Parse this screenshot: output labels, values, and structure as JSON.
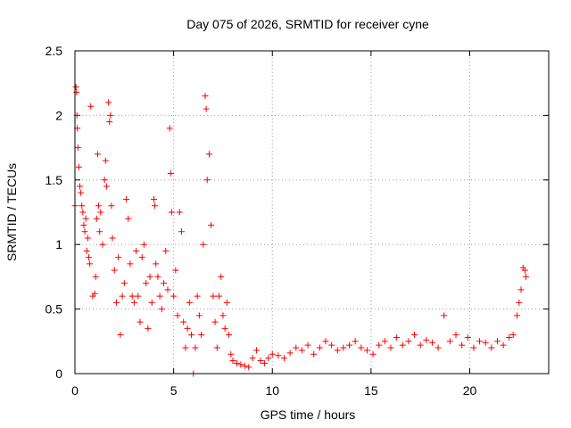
{
  "chart_data": {
    "type": "scatter",
    "title": "Day 075 of 2026, SRMTID for receiver cyne",
    "xlabel": "GPS time / hours",
    "ylabel": "SRMTID / TECUs",
    "xlim": [
      0,
      24
    ],
    "ylim": [
      0,
      2.5
    ],
    "x_ticks": [
      0,
      5,
      10,
      15,
      20
    ],
    "y_ticks": [
      0,
      0.5,
      1,
      1.5,
      2,
      2.5
    ],
    "x_tick_labels": [
      "0",
      "5",
      "10",
      "15",
      "20"
    ],
    "y_tick_labels": [
      "0",
      "0.5",
      "1",
      "1.5",
      "2",
      "2.5"
    ],
    "grid": true,
    "marker": "+",
    "series": [
      {
        "name": "SRMTID",
        "color": "#ff0000",
        "x": [
          0.0,
          0.05,
          0.08,
          0.1,
          0.12,
          0.15,
          0.2,
          0.25,
          0.3,
          0.35,
          0.4,
          0.45,
          0.5,
          0.55,
          0.6,
          0.65,
          0.7,
          0.75,
          0.8,
          0.9,
          1.0,
          1.05,
          1.1,
          1.15,
          1.2,
          1.25,
          1.3,
          1.4,
          1.5,
          1.55,
          1.6,
          1.7,
          1.75,
          1.8,
          1.85,
          1.9,
          2.0,
          2.1,
          2.2,
          2.3,
          2.4,
          2.5,
          2.6,
          2.7,
          2.8,
          2.9,
          3.0,
          3.1,
          3.2,
          3.3,
          3.4,
          3.5,
          3.6,
          3.7,
          3.8,
          3.9,
          4.0,
          4.05,
          4.1,
          4.2,
          4.3,
          4.4,
          4.5,
          4.6,
          4.7,
          4.8,
          4.85,
          4.9,
          5.0,
          5.1,
          5.2,
          5.3,
          5.4,
          5.5,
          5.6,
          5.7,
          5.8,
          5.9,
          6.0,
          6.1,
          6.2,
          6.3,
          6.4,
          6.5,
          6.6,
          6.65,
          6.7,
          6.8,
          6.9,
          7.0,
          7.1,
          7.2,
          7.3,
          7.4,
          7.5,
          7.6,
          7.7,
          7.8,
          7.9,
          8.0,
          8.2,
          8.4,
          8.6,
          8.8,
          9.0,
          9.2,
          9.4,
          9.6,
          9.8,
          10.0,
          10.3,
          10.6,
          10.9,
          11.2,
          11.5,
          11.8,
          12.1,
          12.4,
          12.7,
          13.0,
          13.3,
          13.6,
          13.9,
          14.2,
          14.5,
          14.8,
          15.1,
          15.4,
          15.7,
          16.0,
          16.3,
          16.6,
          16.9,
          17.2,
          17.5,
          17.8,
          18.1,
          18.4,
          18.7,
          19.0,
          19.3,
          19.6,
          19.9,
          20.2,
          20.5,
          20.8,
          21.1,
          21.4,
          21.7,
          22.0,
          22.2,
          22.4,
          22.5,
          22.6,
          22.7,
          22.8,
          22.85
        ],
        "y": [
          1.3,
          2.22,
          2.18,
          2.0,
          1.9,
          1.75,
          1.6,
          1.45,
          1.4,
          1.3,
          1.25,
          1.15,
          1.1,
          1.2,
          0.95,
          1.05,
          0.9,
          0.85,
          2.07,
          0.6,
          0.62,
          0.75,
          1.2,
          1.7,
          1.3,
          1.1,
          1.25,
          1.0,
          1.5,
          1.65,
          1.45,
          2.1,
          1.95,
          2.0,
          1.3,
          1.05,
          0.8,
          0.55,
          0.9,
          0.3,
          0.6,
          0.7,
          1.35,
          1.2,
          0.85,
          0.6,
          0.55,
          0.95,
          0.6,
          0.4,
          0.9,
          1.0,
          0.7,
          0.35,
          0.75,
          0.55,
          1.35,
          1.3,
          0.85,
          0.75,
          0.6,
          0.5,
          0.7,
          0.95,
          0.65,
          1.9,
          1.55,
          1.25,
          0.6,
          0.8,
          0.45,
          1.25,
          1.1,
          0.4,
          0.2,
          0.35,
          0.55,
          0.3,
          0.0,
          0.2,
          0.6,
          0.45,
          0.3,
          1.0,
          2.15,
          2.05,
          1.5,
          1.7,
          1.15,
          0.6,
          0.4,
          0.2,
          0.6,
          0.75,
          0.45,
          0.35,
          0.55,
          0.3,
          0.15,
          0.1,
          0.08,
          0.07,
          0.06,
          0.05,
          0.12,
          0.18,
          0.1,
          0.08,
          0.12,
          0.15,
          0.14,
          0.12,
          0.16,
          0.2,
          0.18,
          0.22,
          0.15,
          0.2,
          0.25,
          0.22,
          0.18,
          0.2,
          0.22,
          0.25,
          0.2,
          0.18,
          0.15,
          0.22,
          0.25,
          0.2,
          0.28,
          0.22,
          0.25,
          0.3,
          0.22,
          0.26,
          0.24,
          0.2,
          0.45,
          0.25,
          0.3,
          0.22,
          0.28,
          0.2,
          0.25,
          0.24,
          0.2,
          0.25,
          0.22,
          0.28,
          0.3,
          0.45,
          0.55,
          0.65,
          0.82,
          0.8,
          0.75
        ]
      }
    ]
  }
}
